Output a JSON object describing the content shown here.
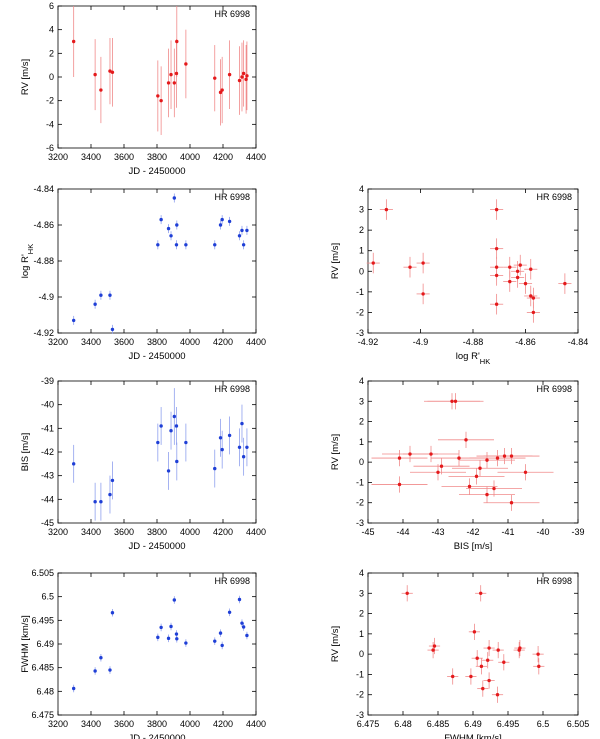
{
  "chart_data": [
    {
      "id": "rv-vs-jd",
      "type": "scatter",
      "title": "HR 6998",
      "xlabel": "JD - 2450000",
      "ylabel": "RV [m/s]",
      "xlim": [
        3200,
        4400
      ],
      "ylim": [
        -6,
        6
      ],
      "xticks": [
        3200,
        3400,
        3600,
        3800,
        4000,
        4200,
        4400
      ],
      "yticks": [
        -6,
        -4,
        -2,
        0,
        2,
        4,
        6
      ],
      "color": "#e41a1c",
      "points": [
        {
          "x": 3295,
          "y": 3.0,
          "xerr": 0,
          "yerr": 3.0
        },
        {
          "x": 3425,
          "y": 0.2,
          "xerr": 0,
          "yerr": 3.0
        },
        {
          "x": 3460,
          "y": -1.1,
          "xerr": 0,
          "yerr": 2.8
        },
        {
          "x": 3515,
          "y": 0.5,
          "xerr": 0,
          "yerr": 2.8
        },
        {
          "x": 3530,
          "y": 0.4,
          "xerr": 0,
          "yerr": 2.9
        },
        {
          "x": 3805,
          "y": -1.6,
          "xerr": 0,
          "yerr": 3.0
        },
        {
          "x": 3825,
          "y": -2.0,
          "xerr": 0,
          "yerr": 2.9
        },
        {
          "x": 3870,
          "y": -0.5,
          "xerr": 0,
          "yerr": 2.9
        },
        {
          "x": 3885,
          "y": 0.2,
          "xerr": 0,
          "yerr": 2.9
        },
        {
          "x": 3905,
          "y": -0.5,
          "xerr": 0,
          "yerr": 2.9
        },
        {
          "x": 3918,
          "y": 0.3,
          "xerr": 0,
          "yerr": 2.9
        },
        {
          "x": 3920,
          "y": 3.0,
          "xerr": 0,
          "yerr": 3.0
        },
        {
          "x": 3975,
          "y": 1.1,
          "xerr": 0,
          "yerr": 2.9
        },
        {
          "x": 4150,
          "y": -0.1,
          "xerr": 0,
          "yerr": 2.8
        },
        {
          "x": 4185,
          "y": -1.3,
          "xerr": 0,
          "yerr": 2.8
        },
        {
          "x": 4195,
          "y": -1.1,
          "xerr": 0,
          "yerr": 2.8
        },
        {
          "x": 4240,
          "y": 0.2,
          "xerr": 0,
          "yerr": 2.9
        },
        {
          "x": 4300,
          "y": -0.3,
          "xerr": 0,
          "yerr": 2.9
        },
        {
          "x": 4315,
          "y": 0.0,
          "xerr": 0,
          "yerr": 2.9
        },
        {
          "x": 4325,
          "y": 0.3,
          "xerr": 0,
          "yerr": 2.8
        },
        {
          "x": 4340,
          "y": -0.2,
          "xerr": 0,
          "yerr": 2.9
        },
        {
          "x": 4345,
          "y": 0.1,
          "xerr": 0,
          "yerr": 2.9
        }
      ]
    },
    {
      "id": "logrhk-vs-jd",
      "type": "scatter",
      "title": "HR 6998",
      "xlabel": "JD - 2450000",
      "ylabel": "log R'HK",
      "xlim": [
        3200,
        4400
      ],
      "ylim": [
        -4.92,
        -4.84
      ],
      "xticks": [
        3200,
        3400,
        3600,
        3800,
        4000,
        4200,
        4400
      ],
      "yticks": [
        -4.92,
        -4.9,
        -4.88,
        -4.86,
        -4.84
      ],
      "color": "#1f3fd6",
      "points": [
        {
          "x": 3295,
          "y": -4.913,
          "xerr": 0,
          "yerr": 0.0025
        },
        {
          "x": 3425,
          "y": -4.904,
          "xerr": 0,
          "yerr": 0.0025
        },
        {
          "x": 3460,
          "y": -4.899,
          "xerr": 0,
          "yerr": 0.0025
        },
        {
          "x": 3515,
          "y": -4.899,
          "xerr": 0,
          "yerr": 0.0025
        },
        {
          "x": 3530,
          "y": -4.918,
          "xerr": 0,
          "yerr": 0.0025
        },
        {
          "x": 3805,
          "y": -4.871,
          "xerr": 0,
          "yerr": 0.0025
        },
        {
          "x": 3825,
          "y": -4.857,
          "xerr": 0,
          "yerr": 0.0025
        },
        {
          "x": 3870,
          "y": -4.862,
          "xerr": 0,
          "yerr": 0.0025
        },
        {
          "x": 3885,
          "y": -4.866,
          "xerr": 0,
          "yerr": 0.0025
        },
        {
          "x": 3905,
          "y": -4.845,
          "xerr": 0,
          "yerr": 0.0025
        },
        {
          "x": 3918,
          "y": -4.871,
          "xerr": 0,
          "yerr": 0.0025
        },
        {
          "x": 3920,
          "y": -4.86,
          "xerr": 0,
          "yerr": 0.0025
        },
        {
          "x": 3975,
          "y": -4.871,
          "xerr": 0,
          "yerr": 0.0025
        },
        {
          "x": 4150,
          "y": -4.871,
          "xerr": 0,
          "yerr": 0.0025
        },
        {
          "x": 4185,
          "y": -4.86,
          "xerr": 0,
          "yerr": 0.0025
        },
        {
          "x": 4195,
          "y": -4.857,
          "xerr": 0,
          "yerr": 0.0025
        },
        {
          "x": 4240,
          "y": -4.858,
          "xerr": 0,
          "yerr": 0.0025
        },
        {
          "x": 4300,
          "y": -4.866,
          "xerr": 0,
          "yerr": 0.0025
        },
        {
          "x": 4315,
          "y": -4.863,
          "xerr": 0,
          "yerr": 0.0025
        },
        {
          "x": 4325,
          "y": -4.871,
          "xerr": 0,
          "yerr": 0.0025
        },
        {
          "x": 4345,
          "y": -4.863,
          "xerr": 0,
          "yerr": 0.0025
        }
      ]
    },
    {
      "id": "rv-vs-logrhk",
      "type": "scatter",
      "title": "HR 6998",
      "xlabel": "log R'HK",
      "ylabel": "RV [m/s]",
      "xlim": [
        -4.92,
        -4.84
      ],
      "ylim": [
        -3,
        4
      ],
      "xticks": [
        -4.92,
        -4.9,
        -4.88,
        -4.86,
        -4.84
      ],
      "yticks": [
        -3,
        -2,
        -1,
        0,
        1,
        2,
        3,
        4
      ],
      "color": "#e41a1c",
      "points": [
        {
          "x": -4.918,
          "y": 0.4,
          "xerr": 0.0025,
          "yerr": 0.5
        },
        {
          "x": -4.913,
          "y": 3.0,
          "xerr": 0.0025,
          "yerr": 0.5
        },
        {
          "x": -4.904,
          "y": 0.2,
          "xerr": 0.0025,
          "yerr": 0.5
        },
        {
          "x": -4.899,
          "y": 0.4,
          "xerr": 0.0025,
          "yerr": 0.5
        },
        {
          "x": -4.899,
          "y": -1.1,
          "xerr": 0.0025,
          "yerr": 0.5
        },
        {
          "x": -4.871,
          "y": 3.0,
          "xerr": 0.0025,
          "yerr": 0.5
        },
        {
          "x": -4.871,
          "y": 1.1,
          "xerr": 0.0025,
          "yerr": 0.5
        },
        {
          "x": -4.871,
          "y": 0.2,
          "xerr": 0.0025,
          "yerr": 0.5
        },
        {
          "x": -4.871,
          "y": -0.2,
          "xerr": 0.0025,
          "yerr": 0.5
        },
        {
          "x": -4.871,
          "y": -1.6,
          "xerr": 0.0025,
          "yerr": 0.5
        },
        {
          "x": -4.866,
          "y": 0.2,
          "xerr": 0.0025,
          "yerr": 0.5
        },
        {
          "x": -4.866,
          "y": -0.5,
          "xerr": 0.0025,
          "yerr": 0.5
        },
        {
          "x": -4.863,
          "y": 0.0,
          "xerr": 0.0025,
          "yerr": 0.5
        },
        {
          "x": -4.863,
          "y": -0.3,
          "xerr": 0.0025,
          "yerr": 0.5
        },
        {
          "x": -4.862,
          "y": 0.3,
          "xerr": 0.0025,
          "yerr": 0.5
        },
        {
          "x": -4.86,
          "y": -0.6,
          "xerr": 0.0025,
          "yerr": 0.5
        },
        {
          "x": -4.858,
          "y": 0.1,
          "xerr": 0.0025,
          "yerr": 0.5
        },
        {
          "x": -4.858,
          "y": -1.2,
          "xerr": 0.0025,
          "yerr": 0.5
        },
        {
          "x": -4.857,
          "y": -2.0,
          "xerr": 0.0025,
          "yerr": 0.5
        },
        {
          "x": -4.857,
          "y": -1.3,
          "xerr": 0.0025,
          "yerr": 0.5
        },
        {
          "x": -4.845,
          "y": -0.6,
          "xerr": 0.0025,
          "yerr": 0.5
        }
      ]
    },
    {
      "id": "bis-vs-jd",
      "type": "scatter",
      "title": "HR 6998",
      "xlabel": "JD - 2450000",
      "ylabel": "BIS [m/s]",
      "xlim": [
        3200,
        4400
      ],
      "ylim": [
        -45,
        -39
      ],
      "xticks": [
        3200,
        3400,
        3600,
        3800,
        4000,
        4200,
        4400
      ],
      "yticks": [
        -45,
        -44,
        -43,
        -42,
        -41,
        -40,
        -39
      ],
      "color": "#1f3fd6",
      "points": [
        {
          "x": 3295,
          "y": -42.5,
          "xerr": 0,
          "yerr": 0.8
        },
        {
          "x": 3425,
          "y": -44.1,
          "xerr": 0,
          "yerr": 0.8
        },
        {
          "x": 3460,
          "y": -44.1,
          "xerr": 0,
          "yerr": 0.8
        },
        {
          "x": 3515,
          "y": -43.8,
          "xerr": 0,
          "yerr": 0.8
        },
        {
          "x": 3530,
          "y": -43.2,
          "xerr": 0,
          "yerr": 0.8
        },
        {
          "x": 3805,
          "y": -41.6,
          "xerr": 0,
          "yerr": 0.8
        },
        {
          "x": 3825,
          "y": -40.9,
          "xerr": 0,
          "yerr": 0.8
        },
        {
          "x": 3870,
          "y": -42.8,
          "xerr": 0,
          "yerr": 0.8
        },
        {
          "x": 3885,
          "y": -41.1,
          "xerr": 0,
          "yerr": 0.8
        },
        {
          "x": 3905,
          "y": -40.5,
          "xerr": 0,
          "yerr": 1.2
        },
        {
          "x": 3918,
          "y": -40.9,
          "xerr": 0,
          "yerr": 0.8
        },
        {
          "x": 3920,
          "y": -42.4,
          "xerr": 0,
          "yerr": 0.8
        },
        {
          "x": 3975,
          "y": -41.6,
          "xerr": 0,
          "yerr": 0.8
        },
        {
          "x": 4150,
          "y": -42.7,
          "xerr": 0,
          "yerr": 0.8
        },
        {
          "x": 4185,
          "y": -41.4,
          "xerr": 0,
          "yerr": 0.8
        },
        {
          "x": 4195,
          "y": -41.9,
          "xerr": 0,
          "yerr": 0.8
        },
        {
          "x": 4240,
          "y": -41.3,
          "xerr": 0,
          "yerr": 0.8
        },
        {
          "x": 4300,
          "y": -41.8,
          "xerr": 0,
          "yerr": 0.8
        },
        {
          "x": 4315,
          "y": -40.8,
          "xerr": 0,
          "yerr": 0.8
        },
        {
          "x": 4325,
          "y": -42.2,
          "xerr": 0,
          "yerr": 0.8
        },
        {
          "x": 4345,
          "y": -41.8,
          "xerr": 0,
          "yerr": 0.8
        }
      ]
    },
    {
      "id": "rv-vs-bis",
      "type": "scatter",
      "title": "HR 6998",
      "xlabel": "BIS [m/s]",
      "ylabel": "RV [m/s]",
      "xlim": [
        -45,
        -39
      ],
      "ylim": [
        -3,
        4
      ],
      "xticks": [
        -45,
        -44,
        -43,
        -42,
        -41,
        -40,
        -39
      ],
      "yticks": [
        -3,
        -2,
        -1,
        0,
        1,
        2,
        3,
        4
      ],
      "color": "#e41a1c",
      "points": [
        {
          "x": -42.6,
          "y": 3.0,
          "xerr": 0.8,
          "yerr": 0.4
        },
        {
          "x": -42.5,
          "y": 3.0,
          "xerr": 0.8,
          "yerr": 0.4
        },
        {
          "x": -42.2,
          "y": 1.1,
          "xerr": 0.8,
          "yerr": 0.4
        },
        {
          "x": -44.1,
          "y": 0.2,
          "xerr": 0.8,
          "yerr": 0.4
        },
        {
          "x": -43.8,
          "y": 0.4,
          "xerr": 0.8,
          "yerr": 0.4
        },
        {
          "x": -43.2,
          "y": 0.4,
          "xerr": 0.8,
          "yerr": 0.4
        },
        {
          "x": -44.1,
          "y": -1.1,
          "xerr": 0.8,
          "yerr": 0.4
        },
        {
          "x": -42.9,
          "y": -0.2,
          "xerr": 0.8,
          "yerr": 0.4
        },
        {
          "x": -43.0,
          "y": -0.5,
          "xerr": 0.8,
          "yerr": 0.4
        },
        {
          "x": -42.4,
          "y": 0.2,
          "xerr": 0.8,
          "yerr": 0.4
        },
        {
          "x": -41.8,
          "y": -0.3,
          "xerr": 0.8,
          "yerr": 0.4
        },
        {
          "x": -41.9,
          "y": -0.7,
          "xerr": 0.8,
          "yerr": 0.4
        },
        {
          "x": -41.6,
          "y": 0.1,
          "xerr": 0.8,
          "yerr": 0.4
        },
        {
          "x": -41.3,
          "y": 0.2,
          "xerr": 0.8,
          "yerr": 0.4
        },
        {
          "x": -41.1,
          "y": 0.3,
          "xerr": 0.8,
          "yerr": 0.4
        },
        {
          "x": -40.9,
          "y": 0.3,
          "xerr": 0.8,
          "yerr": 0.4
        },
        {
          "x": -40.5,
          "y": -0.5,
          "xerr": 0.8,
          "yerr": 0.4
        },
        {
          "x": -42.1,
          "y": -1.2,
          "xerr": 0.8,
          "yerr": 0.4
        },
        {
          "x": -41.6,
          "y": -1.6,
          "xerr": 0.8,
          "yerr": 0.4
        },
        {
          "x": -41.4,
          "y": -1.3,
          "xerr": 0.8,
          "yerr": 0.4
        },
        {
          "x": -40.9,
          "y": -2.0,
          "xerr": 0.8,
          "yerr": 0.4
        }
      ]
    },
    {
      "id": "fwhm-vs-jd",
      "type": "scatter",
      "title": "HR 6998",
      "xlabel": "JD - 2450000",
      "ylabel": "FWHM [km/s]",
      "xlim": [
        3200,
        4400
      ],
      "ylim": [
        6.475,
        6.505
      ],
      "xticks": [
        3200,
        3400,
        3600,
        3800,
        4000,
        4200,
        4400
      ],
      "yticks": [
        6.475,
        6.48,
        6.485,
        6.49,
        6.495,
        6.5,
        6.505
      ],
      "color": "#1f3fd6",
      "points": [
        {
          "x": 3295,
          "y": 6.4806,
          "xerr": 0,
          "yerr": 0.0008
        },
        {
          "x": 3425,
          "y": 6.4843,
          "xerr": 0,
          "yerr": 0.0008
        },
        {
          "x": 3460,
          "y": 6.4871,
          "xerr": 0,
          "yerr": 0.0008
        },
        {
          "x": 3515,
          "y": 6.4845,
          "xerr": 0,
          "yerr": 0.0008
        },
        {
          "x": 3530,
          "y": 6.4966,
          "xerr": 0,
          "yerr": 0.0008
        },
        {
          "x": 3805,
          "y": 6.4914,
          "xerr": 0,
          "yerr": 0.0008
        },
        {
          "x": 3825,
          "y": 6.4935,
          "xerr": 0,
          "yerr": 0.0008
        },
        {
          "x": 3870,
          "y": 6.4912,
          "xerr": 0,
          "yerr": 0.0008
        },
        {
          "x": 3885,
          "y": 6.4937,
          "xerr": 0,
          "yerr": 0.0008
        },
        {
          "x": 3905,
          "y": 6.4993,
          "xerr": 0,
          "yerr": 0.0008
        },
        {
          "x": 3918,
          "y": 6.4921,
          "xerr": 0,
          "yerr": 0.0008
        },
        {
          "x": 3920,
          "y": 6.4911,
          "xerr": 0,
          "yerr": 0.0008
        },
        {
          "x": 3975,
          "y": 6.4902,
          "xerr": 0,
          "yerr": 0.0008
        },
        {
          "x": 4150,
          "y": 6.4906,
          "xerr": 0,
          "yerr": 0.0008
        },
        {
          "x": 4185,
          "y": 6.4923,
          "xerr": 0,
          "yerr": 0.0008
        },
        {
          "x": 4195,
          "y": 6.4897,
          "xerr": 0,
          "yerr": 0.0008
        },
        {
          "x": 4240,
          "y": 6.4967,
          "xerr": 0,
          "yerr": 0.0008
        },
        {
          "x": 4300,
          "y": 6.4994,
          "xerr": 0,
          "yerr": 0.0008
        },
        {
          "x": 4315,
          "y": 6.4944,
          "xerr": 0,
          "yerr": 0.0008
        },
        {
          "x": 4325,
          "y": 6.4936,
          "xerr": 0,
          "yerr": 0.0008
        },
        {
          "x": 4345,
          "y": 6.4918,
          "xerr": 0,
          "yerr": 0.0008
        }
      ]
    },
    {
      "id": "rv-vs-fwhm",
      "type": "scatter",
      "title": "HR 6998",
      "xlabel": "FWHM [km/s]",
      "ylabel": "RV [m/s]",
      "xlim": [
        6.475,
        6.505
      ],
      "ylim": [
        -3,
        4
      ],
      "xticks": [
        6.475,
        6.48,
        6.485,
        6.49,
        6.495,
        6.5,
        6.505
      ],
      "yticks": [
        -3,
        -2,
        -1,
        0,
        1,
        2,
        3,
        4
      ],
      "color": "#e41a1c",
      "points": [
        {
          "x": 6.4806,
          "y": 3.0,
          "xerr": 0.0008,
          "yerr": 0.4
        },
        {
          "x": 6.4911,
          "y": 3.0,
          "xerr": 0.0008,
          "yerr": 0.4
        },
        {
          "x": 6.4843,
          "y": 0.2,
          "xerr": 0.0008,
          "yerr": 0.4
        },
        {
          "x": 6.4845,
          "y": 0.4,
          "xerr": 0.0008,
          "yerr": 0.4
        },
        {
          "x": 6.4871,
          "y": -1.1,
          "xerr": 0.0008,
          "yerr": 0.4
        },
        {
          "x": 6.4902,
          "y": 1.1,
          "xerr": 0.0008,
          "yerr": 0.4
        },
        {
          "x": 6.4897,
          "y": -1.1,
          "xerr": 0.0008,
          "yerr": 0.4
        },
        {
          "x": 6.4906,
          "y": -0.2,
          "xerr": 0.0008,
          "yerr": 0.4
        },
        {
          "x": 6.4912,
          "y": -0.6,
          "xerr": 0.0008,
          "yerr": 0.4
        },
        {
          "x": 6.4914,
          "y": -1.7,
          "xerr": 0.0008,
          "yerr": 0.4
        },
        {
          "x": 6.4921,
          "y": -0.3,
          "xerr": 0.0008,
          "yerr": 0.4
        },
        {
          "x": 6.4923,
          "y": 0.3,
          "xerr": 0.0008,
          "yerr": 0.4
        },
        {
          "x": 6.4923,
          "y": -1.3,
          "xerr": 0.0008,
          "yerr": 0.4
        },
        {
          "x": 6.4935,
          "y": -2.0,
          "xerr": 0.0008,
          "yerr": 0.4
        },
        {
          "x": 6.4936,
          "y": 0.2,
          "xerr": 0.0008,
          "yerr": 0.4
        },
        {
          "x": 6.4944,
          "y": -0.4,
          "xerr": 0.0008,
          "yerr": 0.4
        },
        {
          "x": 6.4966,
          "y": 0.2,
          "xerr": 0.0008,
          "yerr": 0.4
        },
        {
          "x": 6.4967,
          "y": 0.3,
          "xerr": 0.0008,
          "yerr": 0.4
        },
        {
          "x": 6.4993,
          "y": 0.0,
          "xerr": 0.0008,
          "yerr": 0.4
        },
        {
          "x": 6.4994,
          "y": -0.6,
          "xerr": 0.0008,
          "yerr": 0.4
        }
      ]
    }
  ]
}
